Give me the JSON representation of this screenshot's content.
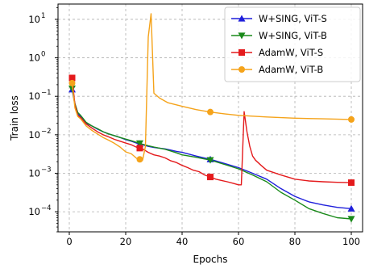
{
  "chart_data": {
    "type": "line",
    "xlabel": "Epochs",
    "ylabel": "Train loss",
    "x_scale": "linear",
    "y_scale": "log",
    "xlim": [
      -4,
      104
    ],
    "ylim": [
      3e-05,
      25
    ],
    "x_ticks": [
      0,
      20,
      40,
      60,
      80,
      100
    ],
    "y_ticks": [
      0.0001,
      0.001,
      0.01,
      0.1,
      1,
      10
    ],
    "y_tick_labels": [
      {
        "base": "10",
        "exp": "−4"
      },
      {
        "base": "10",
        "exp": "−3"
      },
      {
        "base": "10",
        "exp": "−2"
      },
      {
        "base": "10",
        "exp": "−1"
      },
      {
        "base": "10",
        "exp": "0"
      },
      {
        "base": "10",
        "exp": "1"
      }
    ],
    "grid": true,
    "legend_position": "top-right",
    "series": [
      {
        "name": "W+SING, ViT-S",
        "color": "#1f1fdb",
        "marker": "triangle-up",
        "marker_x": [
          1,
          25,
          50,
          100
        ],
        "x": [
          1,
          2,
          3,
          4,
          5,
          6,
          8,
          10,
          12,
          14,
          16,
          18,
          20,
          22,
          24,
          25,
          26,
          28,
          30,
          32,
          34,
          36,
          38,
          40,
          45,
          50,
          55,
          60,
          65,
          70,
          75,
          80,
          85,
          90,
          95,
          100
        ],
        "y": [
          0.15,
          0.06,
          0.035,
          0.03,
          0.025,
          0.02,
          0.017,
          0.014,
          0.012,
          0.0105,
          0.0095,
          0.0085,
          0.0075,
          0.0068,
          0.006,
          0.0058,
          0.0055,
          0.005,
          0.0047,
          0.0045,
          0.0043,
          0.004,
          0.0037,
          0.0035,
          0.0028,
          0.0023,
          0.0018,
          0.0014,
          0.001,
          0.0007,
          0.0004,
          0.00025,
          0.00018,
          0.00015,
          0.00013,
          0.00012
        ]
      },
      {
        "name": "W+SING, ViT-B",
        "color": "#1a8a1a",
        "marker": "triangle-down",
        "marker_x": [
          1,
          25,
          50,
          100
        ],
        "x": [
          1,
          2,
          3,
          4,
          5,
          6,
          8,
          10,
          12,
          14,
          16,
          18,
          20,
          22,
          24,
          25,
          26,
          28,
          30,
          32,
          34,
          36,
          38,
          40,
          45,
          50,
          55,
          60,
          65,
          70,
          75,
          80,
          85,
          90,
          95,
          100
        ],
        "y": [
          0.16,
          0.065,
          0.038,
          0.032,
          0.026,
          0.021,
          0.017,
          0.0145,
          0.012,
          0.0105,
          0.0095,
          0.0085,
          0.0077,
          0.007,
          0.0063,
          0.006,
          0.0057,
          0.0052,
          0.0048,
          0.0045,
          0.0042,
          0.0038,
          0.0034,
          0.003,
          0.0026,
          0.0022,
          0.0017,
          0.0013,
          0.0009,
          0.0006,
          0.00032,
          0.0002,
          0.00012,
          9e-05,
          7e-05,
          6.5e-05
        ]
      },
      {
        "name": "AdamW, ViT-S",
        "color": "#e41a1c",
        "marker": "square",
        "marker_x": [
          1,
          25,
          50,
          100
        ],
        "x": [
          1,
          2,
          3,
          4,
          5,
          6,
          8,
          10,
          12,
          14,
          16,
          18,
          20,
          22,
          24,
          25,
          26,
          28,
          30,
          32,
          34,
          36,
          38,
          40,
          42,
          44,
          46,
          48,
          50,
          52,
          54,
          56,
          58,
          60,
          61,
          62,
          63,
          64,
          65,
          66,
          68,
          70,
          75,
          80,
          85,
          90,
          95,
          100
        ],
        "y": [
          0.3,
          0.06,
          0.032,
          0.028,
          0.023,
          0.019,
          0.015,
          0.012,
          0.01,
          0.0088,
          0.0076,
          0.0068,
          0.0061,
          0.0055,
          0.0047,
          0.0045,
          0.0043,
          0.0035,
          0.003,
          0.0028,
          0.0025,
          0.0021,
          0.0019,
          0.0016,
          0.0014,
          0.0012,
          0.0011,
          0.0009,
          0.0008,
          0.0007,
          0.00065,
          0.0006,
          0.00055,
          0.0005,
          0.0005,
          0.04,
          0.012,
          0.005,
          0.0028,
          0.0022,
          0.0016,
          0.0012,
          0.0009,
          0.0007,
          0.00063,
          0.0006,
          0.00058,
          0.00057
        ]
      },
      {
        "name": "AdamW, ViT-B",
        "color": "#f5a31a",
        "marker": "circle",
        "marker_x": [
          1,
          25,
          50,
          100
        ],
        "x": [
          1,
          2,
          3,
          4,
          5,
          6,
          8,
          10,
          12,
          14,
          16,
          18,
          20,
          22,
          24,
          25,
          26,
          27,
          28,
          29,
          30,
          32,
          35,
          40,
          45,
          50,
          55,
          60,
          70,
          80,
          90,
          100
        ],
        "y": [
          0.22,
          0.05,
          0.03,
          0.026,
          0.021,
          0.017,
          0.013,
          0.0105,
          0.0085,
          0.0072,
          0.006,
          0.0048,
          0.0036,
          0.0032,
          0.0024,
          0.0023,
          0.0022,
          0.005,
          3.5,
          14,
          0.12,
          0.09,
          0.068,
          0.055,
          0.045,
          0.039,
          0.035,
          0.032,
          0.029,
          0.027,
          0.026,
          0.025
        ]
      }
    ]
  }
}
